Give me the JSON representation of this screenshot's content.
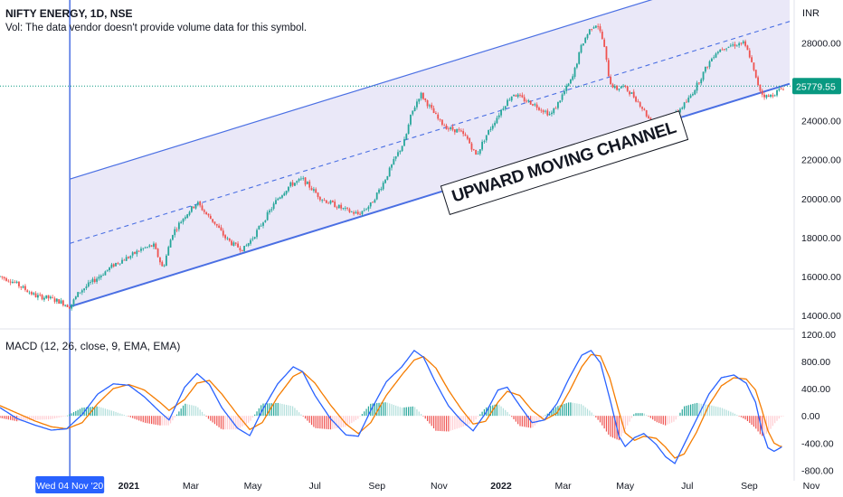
{
  "header": {
    "title": "NIFTY ENERGY, 1D, NSE",
    "volume_note": "Vol: The data vendor doesn't provide volume data for this symbol.",
    "indicator_label": "MACD (12, 26, close, 9, EMA, EMA)",
    "currency": "INR"
  },
  "annotation": {
    "text": "UPWARD MOVING CHANNEL"
  },
  "colors": {
    "up": "#26a69a",
    "down": "#ef5350",
    "channel": "#4a6fe3",
    "channel_fill": "#e3e0f6",
    "macd": "#2962ff",
    "signal": "#f57c00",
    "price_badge": "#089981",
    "axis_text": "#131722"
  },
  "chart_data": [
    {
      "type": "candlestick",
      "title": "NIFTY ENERGY, 1D, NSE",
      "ylabel": "INR",
      "y_ticks": [
        "14000.00",
        "16000.00",
        "18000.00",
        "20000.00",
        "22000.00",
        "24000.00",
        "28000.00"
      ],
      "y_tick_values": [
        14000,
        16000,
        18000,
        20000,
        22000,
        24000,
        28000
      ],
      "ylim": [
        13400,
        30200
      ],
      "current_price": {
        "label": "25779.55",
        "value": 25779.55
      },
      "x_ticks": [
        "Wed 04 Nov '20",
        "2021",
        "Mar",
        "May",
        "Jul",
        "Sep",
        "Nov",
        "2022",
        "Mar",
        "May",
        "Jul",
        "Sep",
        "Nov"
      ],
      "x_tick_months": [
        0.1,
        2.0,
        4.0,
        6.0,
        8.0,
        10.0,
        12.0,
        14.0,
        16.0,
        18.0,
        20.0,
        22.0,
        24.0
      ],
      "xlim_months": [
        -2.15,
        23.3
      ],
      "price_path": [
        [
          -2.15,
          16000
        ],
        [
          -1.8,
          15800
        ],
        [
          -1.4,
          15400
        ],
        [
          -1.0,
          15000
        ],
        [
          -0.6,
          14900
        ],
        [
          -0.2,
          14700
        ],
        [
          0.1,
          14450
        ],
        [
          0.4,
          15200
        ],
        [
          0.8,
          15700
        ],
        [
          1.2,
          16200
        ],
        [
          1.6,
          16700
        ],
        [
          2.0,
          17000
        ],
        [
          2.4,
          17400
        ],
        [
          2.8,
          17600
        ],
        [
          3.1,
          16400
        ],
        [
          3.4,
          18200
        ],
        [
          3.8,
          19100
        ],
        [
          4.2,
          19800
        ],
        [
          4.5,
          19200
        ],
        [
          4.8,
          18700
        ],
        [
          5.1,
          18000
        ],
        [
          5.4,
          17600
        ],
        [
          5.7,
          17400
        ],
        [
          6.0,
          18000
        ],
        [
          6.4,
          19000
        ],
        [
          6.8,
          20000
        ],
        [
          7.2,
          20700
        ],
        [
          7.6,
          21000
        ],
        [
          7.9,
          20500
        ],
        [
          8.2,
          20000
        ],
        [
          8.6,
          19700
        ],
        [
          9.0,
          19400
        ],
        [
          9.4,
          19200
        ],
        [
          9.8,
          19700
        ],
        [
          10.2,
          20800
        ],
        [
          10.6,
          22100
        ],
        [
          10.9,
          23000
        ],
        [
          11.1,
          24300
        ],
        [
          11.4,
          25400
        ],
        [
          11.7,
          24700
        ],
        [
          12.0,
          24000
        ],
        [
          12.3,
          23600
        ],
        [
          12.6,
          23500
        ],
        [
          12.9,
          23100
        ],
        [
          13.2,
          22200
        ],
        [
          13.5,
          23200
        ],
        [
          13.8,
          24000
        ],
        [
          14.1,
          24800
        ],
        [
          14.4,
          25400
        ],
        [
          14.7,
          25100
        ],
        [
          15.0,
          24900
        ],
        [
          15.3,
          24600
        ],
        [
          15.6,
          24300
        ],
        [
          15.8,
          24800
        ],
        [
          16.0,
          25400
        ],
        [
          16.3,
          26200
        ],
        [
          16.6,
          27900
        ],
        [
          16.9,
          28800
        ],
        [
          17.1,
          29000
        ],
        [
          17.3,
          28000
        ],
        [
          17.5,
          26000
        ],
        [
          17.7,
          25600
        ],
        [
          17.9,
          25800
        ],
        [
          18.2,
          25400
        ],
        [
          18.5,
          24800
        ],
        [
          18.8,
          24000
        ],
        [
          19.1,
          23600
        ],
        [
          19.4,
          23900
        ],
        [
          19.7,
          24500
        ],
        [
          20.0,
          25000
        ],
        [
          20.3,
          25800
        ],
        [
          20.6,
          26700
        ],
        [
          20.9,
          27500
        ],
        [
          21.2,
          27800
        ],
        [
          21.5,
          27900
        ],
        [
          21.8,
          28000
        ],
        [
          22.0,
          27400
        ],
        [
          22.2,
          26200
        ],
        [
          22.4,
          25400
        ],
        [
          22.6,
          25200
        ],
        [
          22.8,
          25400
        ],
        [
          23.0,
          25600
        ],
        [
          23.15,
          25780
        ]
      ],
      "channel": {
        "lower": [
          [
            0.1,
            14450
          ],
          [
            23.3,
            25900
          ]
        ],
        "upper": [
          [
            0.1,
            21000
          ],
          [
            23.3,
            32400
          ]
        ],
        "median_dashed": [
          [
            0.1,
            17700
          ],
          [
            23.3,
            29100
          ]
        ]
      },
      "marker_date": "Wed 04 Nov '20"
    },
    {
      "type": "line",
      "title": "MACD (12, 26, close, 9, EMA, EMA)",
      "y_ticks": [
        "1200.00",
        "800.00",
        "400.00",
        "0.00",
        "-400.00",
        "-800.00"
      ],
      "y_tick_values": [
        1200,
        800,
        400,
        0,
        -400,
        -800
      ],
      "ylim": [
        -900,
        1250
      ],
      "macd_path": [
        [
          -2.15,
          120
        ],
        [
          -1.6,
          -40
        ],
        [
          -1.0,
          -140
        ],
        [
          -0.5,
          -210
        ],
        [
          0.0,
          -190
        ],
        [
          0.5,
          20
        ],
        [
          1.0,
          320
        ],
        [
          1.5,
          470
        ],
        [
          2.0,
          450
        ],
        [
          2.5,
          280
        ],
        [
          3.0,
          60
        ],
        [
          3.3,
          -60
        ],
        [
          3.8,
          420
        ],
        [
          4.2,
          620
        ],
        [
          4.6,
          460
        ],
        [
          5.0,
          120
        ],
        [
          5.5,
          -180
        ],
        [
          5.9,
          -290
        ],
        [
          6.3,
          80
        ],
        [
          6.8,
          470
        ],
        [
          7.3,
          720
        ],
        [
          7.6,
          650
        ],
        [
          8.0,
          300
        ],
        [
          8.5,
          -40
        ],
        [
          9.0,
          -280
        ],
        [
          9.4,
          -300
        ],
        [
          9.8,
          80
        ],
        [
          10.3,
          500
        ],
        [
          10.8,
          720
        ],
        [
          11.2,
          960
        ],
        [
          11.5,
          860
        ],
        [
          11.9,
          480
        ],
        [
          12.3,
          150
        ],
        [
          12.7,
          -60
        ],
        [
          13.1,
          -220
        ],
        [
          13.5,
          40
        ],
        [
          13.9,
          380
        ],
        [
          14.2,
          420
        ],
        [
          14.6,
          150
        ],
        [
          15.0,
          -100
        ],
        [
          15.4,
          -60
        ],
        [
          15.8,
          180
        ],
        [
          16.2,
          560
        ],
        [
          16.6,
          890
        ],
        [
          16.9,
          960
        ],
        [
          17.2,
          780
        ],
        [
          17.5,
          260
        ],
        [
          17.8,
          -300
        ],
        [
          18.0,
          -450
        ],
        [
          18.3,
          -320
        ],
        [
          18.6,
          -260
        ],
        [
          19.0,
          -420
        ],
        [
          19.3,
          -600
        ],
        [
          19.6,
          -700
        ],
        [
          19.9,
          -420
        ],
        [
          20.3,
          -50
        ],
        [
          20.7,
          320
        ],
        [
          21.1,
          560
        ],
        [
          21.5,
          600
        ],
        [
          21.9,
          480
        ],
        [
          22.2,
          200
        ],
        [
          22.4,
          -200
        ],
        [
          22.6,
          -470
        ],
        [
          22.8,
          -520
        ],
        [
          23.0,
          -470
        ],
        [
          23.1,
          -440
        ]
      ],
      "signal_path": [
        [
          -2.15,
          150
        ],
        [
          -1.6,
          40
        ],
        [
          -1.0,
          -80
        ],
        [
          -0.5,
          -160
        ],
        [
          0.0,
          -190
        ],
        [
          0.5,
          -100
        ],
        [
          1.0,
          180
        ],
        [
          1.5,
          400
        ],
        [
          2.0,
          460
        ],
        [
          2.5,
          380
        ],
        [
          3.0,
          200
        ],
        [
          3.3,
          80
        ],
        [
          3.8,
          240
        ],
        [
          4.2,
          480
        ],
        [
          4.6,
          520
        ],
        [
          5.0,
          320
        ],
        [
          5.5,
          20
        ],
        [
          5.9,
          -200
        ],
        [
          6.3,
          -100
        ],
        [
          6.8,
          280
        ],
        [
          7.3,
          580
        ],
        [
          7.6,
          650
        ],
        [
          8.0,
          480
        ],
        [
          8.5,
          160
        ],
        [
          9.0,
          -120
        ],
        [
          9.4,
          -260
        ],
        [
          9.8,
          -100
        ],
        [
          10.3,
          300
        ],
        [
          10.8,
          600
        ],
        [
          11.2,
          820
        ],
        [
          11.5,
          870
        ],
        [
          11.9,
          700
        ],
        [
          12.3,
          380
        ],
        [
          12.7,
          110
        ],
        [
          13.1,
          -120
        ],
        [
          13.5,
          -80
        ],
        [
          13.9,
          200
        ],
        [
          14.2,
          360
        ],
        [
          14.6,
          300
        ],
        [
          15.0,
          80
        ],
        [
          15.4,
          -60
        ],
        [
          15.8,
          40
        ],
        [
          16.2,
          360
        ],
        [
          16.6,
          720
        ],
        [
          16.9,
          900
        ],
        [
          17.2,
          880
        ],
        [
          17.5,
          560
        ],
        [
          17.8,
          60
        ],
        [
          18.0,
          -250
        ],
        [
          18.3,
          -360
        ],
        [
          18.6,
          -300
        ],
        [
          19.0,
          -330
        ],
        [
          19.3,
          -460
        ],
        [
          19.6,
          -620
        ],
        [
          19.9,
          -560
        ],
        [
          20.3,
          -240
        ],
        [
          20.7,
          160
        ],
        [
          21.1,
          440
        ],
        [
          21.5,
          560
        ],
        [
          21.9,
          540
        ],
        [
          22.2,
          380
        ],
        [
          22.4,
          100
        ],
        [
          22.6,
          -220
        ],
        [
          22.8,
          -400
        ],
        [
          23.0,
          -450
        ],
        [
          23.1,
          -440
        ]
      ]
    }
  ]
}
